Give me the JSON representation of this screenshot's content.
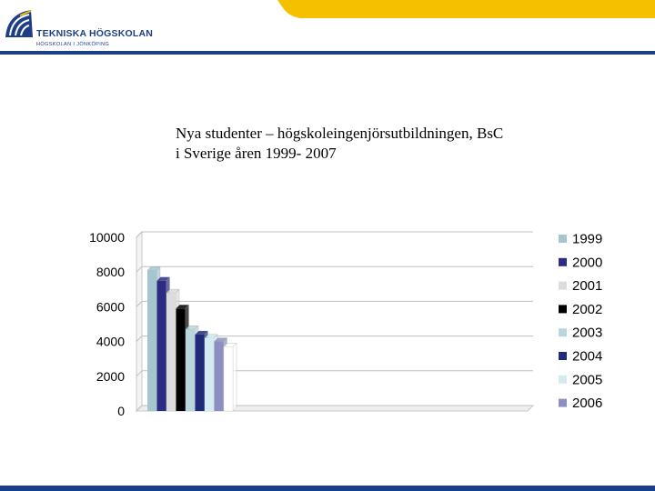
{
  "header": {
    "logo_name": "TEKNISKA HÖGSKOLAN",
    "logo_sub": "HÖGSKOLAN I JÖNKÖPING"
  },
  "slide": {
    "title": "Nya studenter – högskoleingenjörsutbildningen, BsC\n i Sverige åren 1999- 2007"
  },
  "colors": {
    "accent_yellow": "#f5c000",
    "brand_blue": "#1b3f86"
  },
  "chart_data": {
    "type": "bar",
    "categories": [
      ""
    ],
    "series": [
      {
        "name": "1999",
        "values": [
          8100
        ],
        "color": "#a6c6cf"
      },
      {
        "name": "2000",
        "values": [
          7500
        ],
        "color": "#2b2c82"
      },
      {
        "name": "2001",
        "values": [
          6800
        ],
        "color": "#dcdcdc"
      },
      {
        "name": "2002",
        "values": [
          5900
        ],
        "color": "#000000"
      },
      {
        "name": "2003",
        "values": [
          4700
        ],
        "color": "#b9d6dc"
      },
      {
        "name": "2004",
        "values": [
          4400
        ],
        "color": "#1f2a7a"
      },
      {
        "name": "2005",
        "values": [
          4200
        ],
        "color": "#d4ecf0"
      },
      {
        "name": "2006",
        "values": [
          4000
        ],
        "color": "#8c8fbf"
      },
      {
        "name": "",
        "values": [
          3700
        ],
        "color": "#ffffff"
      }
    ],
    "ylim": [
      0,
      10000
    ],
    "yticks": [
      0,
      2000,
      4000,
      6000,
      8000,
      10000
    ],
    "grid": true,
    "legend": "right",
    "style": "3d"
  }
}
